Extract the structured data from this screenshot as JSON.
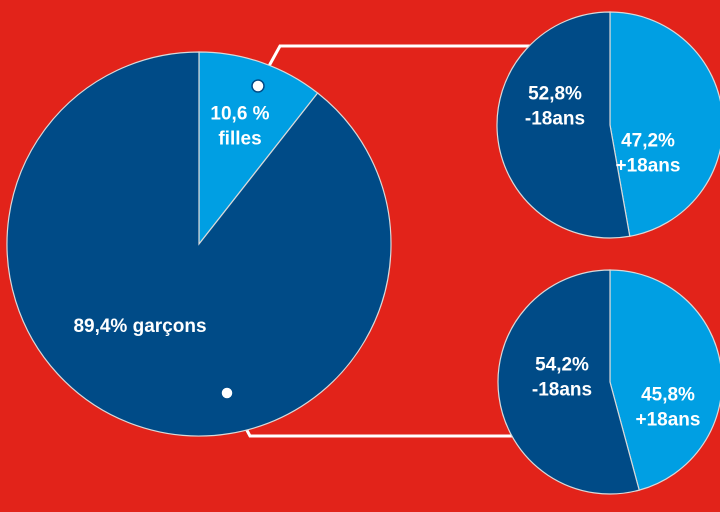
{
  "colors": {
    "background": "#e2231a",
    "dark_blue": "#004b87",
    "light_blue": "#009fe3",
    "white": "#ffffff"
  },
  "chart_data": [
    {
      "type": "pie",
      "slices": [
        {
          "label_lines": [
            "10,6 %",
            "filles"
          ],
          "value": 10.6,
          "color": "#009fe3"
        },
        {
          "label_lines": [
            "89,4% garçons"
          ],
          "value": 89.4,
          "color": "#004b87"
        }
      ]
    },
    {
      "type": "pie",
      "slices": [
        {
          "label_lines": [
            "47,2%",
            "+18ans"
          ],
          "value": 47.2,
          "color": "#009fe3"
        },
        {
          "label_lines": [
            "52,8%",
            "-18ans"
          ],
          "value": 52.8,
          "color": "#004b87"
        }
      ]
    },
    {
      "type": "pie",
      "slices": [
        {
          "label_lines": [
            "45,8%",
            "+18ans"
          ],
          "value": 45.8,
          "color": "#009fe3"
        },
        {
          "label_lines": [
            "54,2%",
            "-18ans"
          ],
          "value": 54.2,
          "color": "#004b87"
        }
      ]
    }
  ]
}
